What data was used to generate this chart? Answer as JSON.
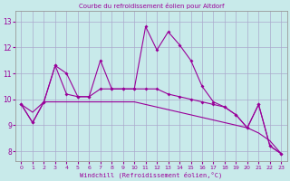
{
  "title": "Courbe du refroidissement éolien pour Altdorf",
  "xlabel": "Windchill (Refroidissement éolien,°C)",
  "bg_color": "#c8eaea",
  "line_color": "#990099",
  "grid_color": "#aaaacc",
  "x_ticks": [
    0,
    1,
    2,
    3,
    4,
    5,
    6,
    7,
    8,
    9,
    10,
    11,
    12,
    13,
    14,
    15,
    16,
    17,
    18,
    19,
    20,
    21,
    22,
    23
  ],
  "y_ticks": [
    8,
    9,
    10,
    11,
    12,
    13
  ],
  "ylim": [
    7.6,
    13.4
  ],
  "xlim": [
    -0.5,
    23.5
  ],
  "series": [
    [
      9.8,
      9.1,
      9.9,
      11.3,
      10.2,
      10.1,
      10.1,
      11.5,
      10.4,
      10.4,
      10.4,
      12.8,
      11.9,
      12.6,
      12.1,
      11.5,
      10.5,
      9.9,
      9.7,
      9.4,
      8.9,
      9.8,
      8.2,
      7.9
    ],
    [
      9.8,
      9.1,
      9.9,
      11.3,
      11.0,
      10.1,
      10.1,
      10.4,
      10.4,
      10.4,
      10.4,
      10.4,
      10.4,
      10.2,
      10.1,
      10.0,
      9.9,
      9.8,
      9.7,
      9.4,
      8.9,
      9.8,
      8.2,
      7.9
    ],
    [
      9.8,
      9.5,
      9.9,
      9.9,
      9.9,
      9.9,
      9.9,
      9.9,
      9.9,
      9.9,
      9.9,
      9.8,
      9.7,
      9.6,
      9.5,
      9.4,
      9.3,
      9.2,
      9.1,
      9.0,
      8.9,
      8.7,
      8.4,
      7.9
    ]
  ]
}
